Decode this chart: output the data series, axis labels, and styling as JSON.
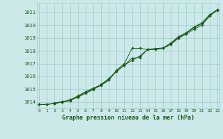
{
  "title": "Graphe pression niveau de la mer (hPa)",
  "x_labels": [
    "0",
    "1",
    "2",
    "3",
    "4",
    "5",
    "6",
    "7",
    "8",
    "9",
    "10",
    "11",
    "12",
    "13",
    "14",
    "15",
    "16",
    "17",
    "18",
    "19",
    "20",
    "21",
    "22",
    "23"
  ],
  "xlim": [
    -0.3,
    23.3
  ],
  "ylim": [
    1013.5,
    1021.7
  ],
  "yticks": [
    1014,
    1015,
    1016,
    1017,
    1018,
    1019,
    1020,
    1021
  ],
  "background_color": "#cce8e8",
  "grid_color": "#99cccc",
  "line_color": "#1a5c1a",
  "marker_color": "#1a5c1a",
  "title_color": "#1a5c1a",
  "series1": [
    1013.8,
    1013.8,
    1013.9,
    1014.0,
    1014.1,
    1014.5,
    1014.8,
    1015.1,
    1015.3,
    1015.7,
    1016.5,
    1017.0,
    1018.2,
    1018.2,
    1018.1,
    1018.1,
    1018.2,
    1018.5,
    1019.0,
    1019.3,
    1019.7,
    1020.0,
    1020.7,
    1021.2
  ],
  "series2": [
    1013.8,
    1013.82,
    1013.88,
    1014.0,
    1014.12,
    1014.38,
    1014.68,
    1014.98,
    1015.32,
    1015.78,
    1016.38,
    1016.88,
    1017.25,
    1017.6,
    1018.1,
    1018.15,
    1018.2,
    1018.55,
    1019.05,
    1019.38,
    1019.82,
    1020.12,
    1020.75,
    1021.18
  ],
  "series3": [
    1013.8,
    1013.8,
    1013.93,
    1014.03,
    1014.18,
    1014.43,
    1014.73,
    1015.03,
    1015.38,
    1015.83,
    1016.43,
    1016.88,
    1017.43,
    1017.48,
    1018.12,
    1018.18,
    1018.23,
    1018.62,
    1019.12,
    1019.42,
    1019.88,
    1020.18,
    1020.82,
    1021.22
  ]
}
